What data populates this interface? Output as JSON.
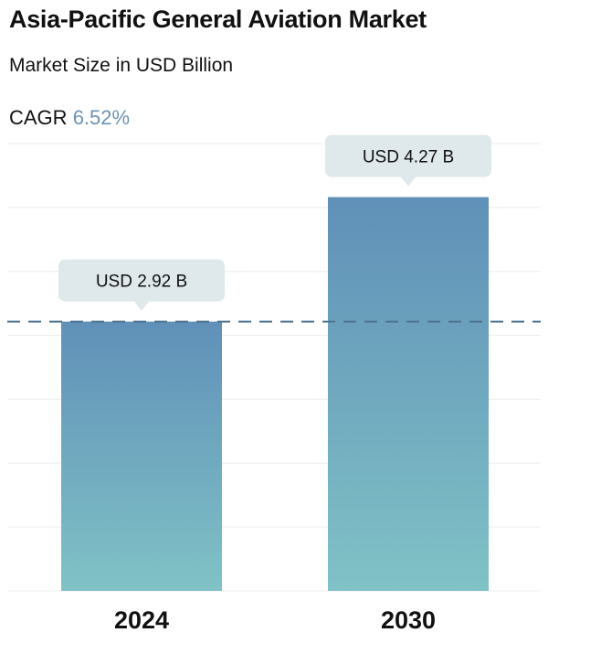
{
  "chart_data": {
    "type": "bar",
    "title": "Asia-Pacific General Aviation Market",
    "subtitle": "Market Size in USD Billion",
    "cagr_label": "CAGR",
    "cagr_value": "6.52%",
    "categories": [
      "2024",
      "2030"
    ],
    "values": [
      2.92,
      4.27
    ],
    "data_labels": [
      "USD 2.92 B",
      "USD 4.27 B"
    ],
    "ylim": [
      0,
      4.85
    ],
    "reference_line_value": 2.92,
    "grid": true,
    "bar_gradient_top": "#6090b8",
    "bar_gradient_bottom": "#80c2c6",
    "label_bg": "#dfe8ea",
    "reference_line_color": "#4f7490",
    "cagr_color": "#6b93b3"
  }
}
